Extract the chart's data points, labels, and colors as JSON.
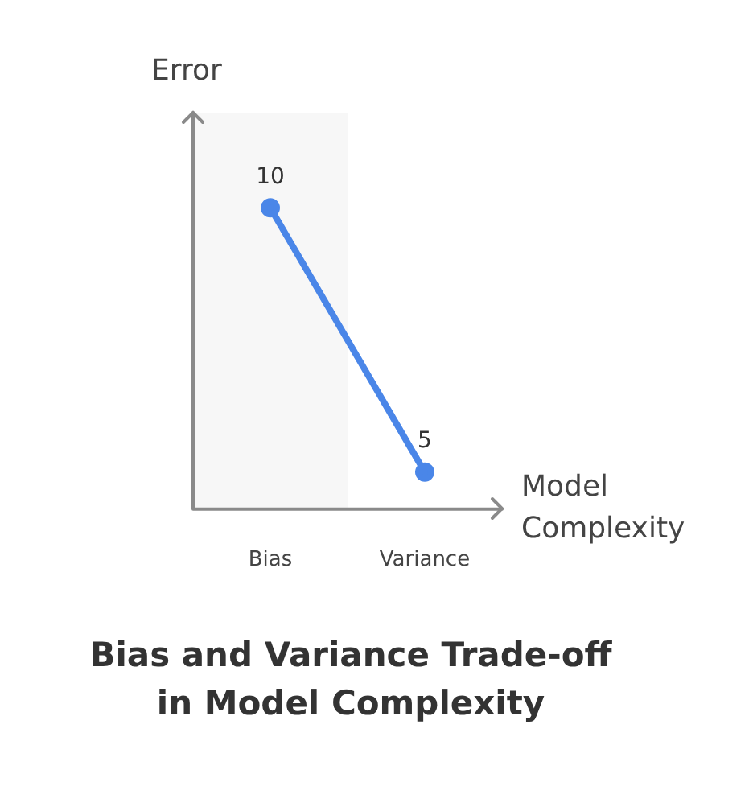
{
  "chart_data": {
    "type": "line",
    "title": "Bias and Variance Trade-off\nin Model Complexity",
    "xlabel": "Model\nComplexity",
    "ylabel": "Error",
    "categories": [
      "Bias",
      "Variance"
    ],
    "series": [
      {
        "color": "#4a86e8",
        "values": [
          10,
          5
        ]
      }
    ],
    "ylim": [
      4.3,
      11.8
    ],
    "data_labels": true,
    "marker": "circle",
    "line_style": "solid",
    "grid": false,
    "legend": false,
    "tick_labels": "x",
    "bands": [
      {
        "axis": "x",
        "from": "Bias",
        "to": "Bias",
        "color": "#f7f7f7"
      }
    ]
  }
}
